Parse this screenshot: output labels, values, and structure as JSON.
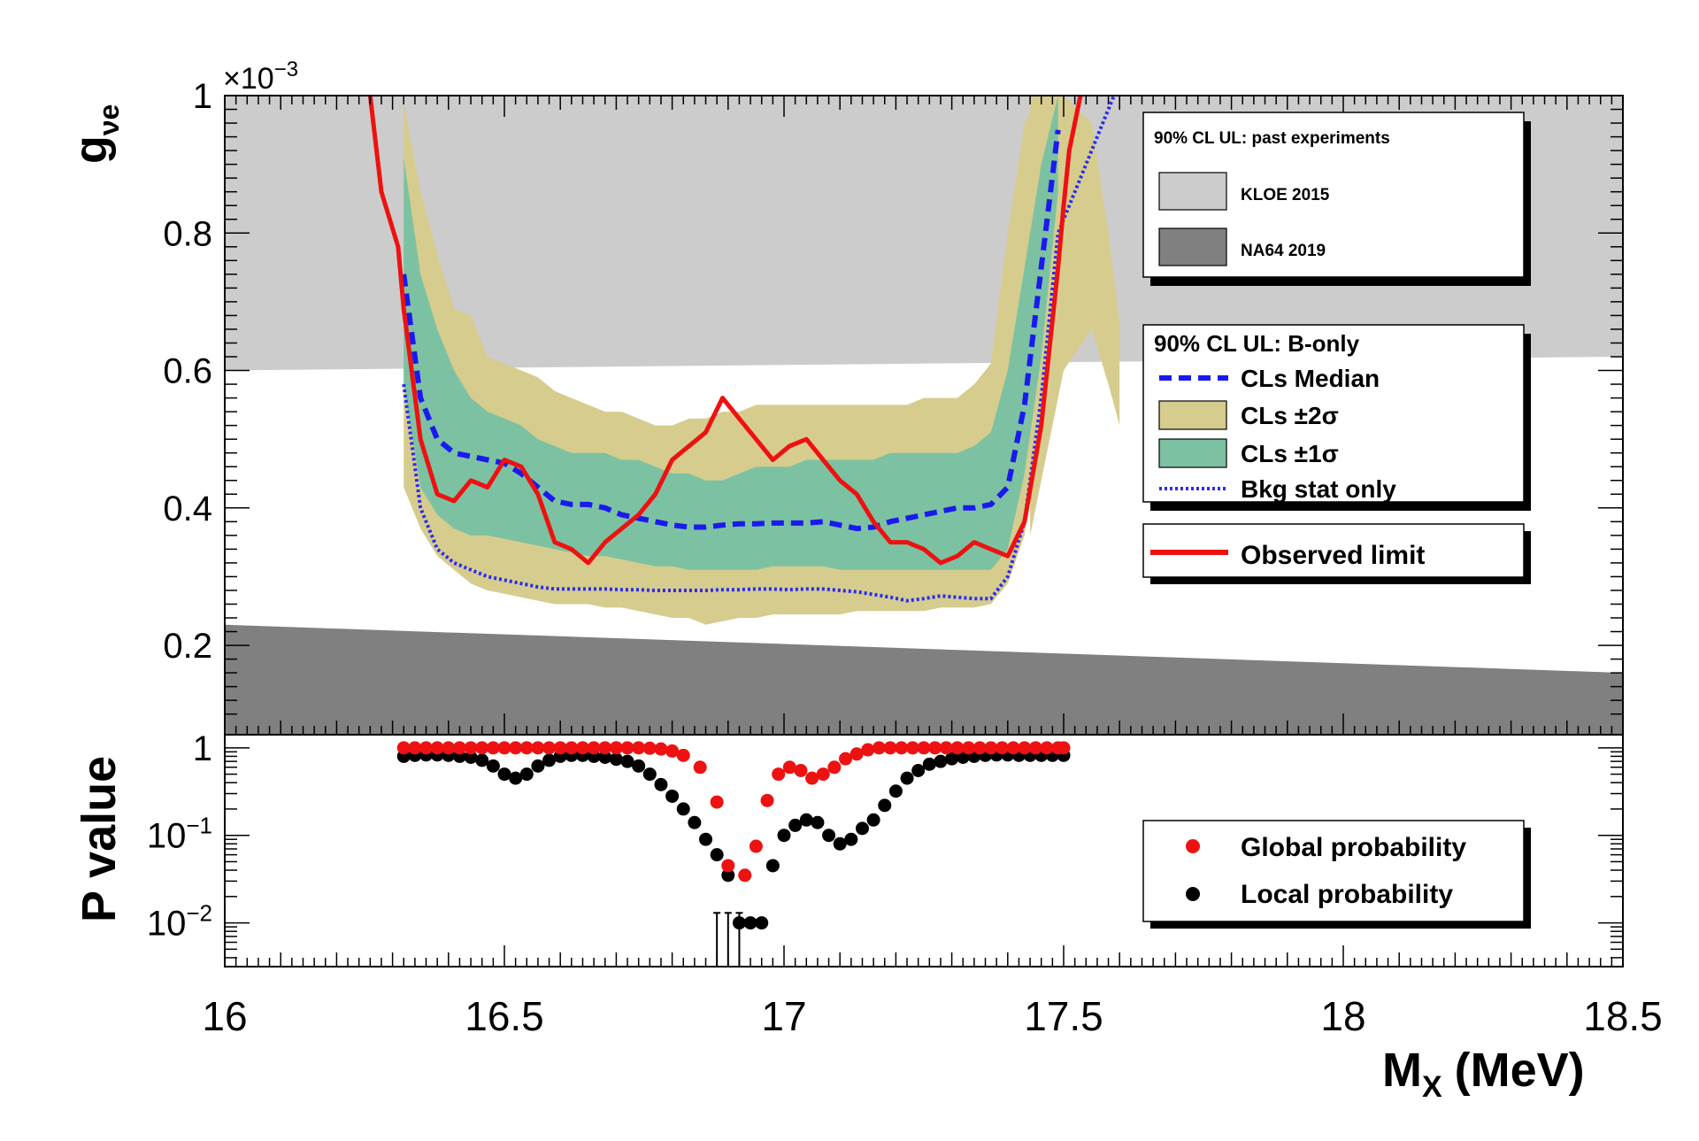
{
  "chart_data": [
    {
      "type": "line",
      "panel": "upper",
      "ylabel": "g",
      "ylabel_sub": "νe",
      "y_multiplier": "×10",
      "y_multiplier_exp": "−3",
      "xlim": [
        16,
        18.5
      ],
      "ylim": [
        0.07,
        1.0
      ],
      "yticks": [
        0.2,
        0.4,
        0.6,
        0.8,
        1
      ],
      "ytick_labels": [
        "0.2",
        "0.4",
        "0.6",
        "0.8",
        "1"
      ],
      "legend_past": {
        "title": "90% CL UL: past experiments",
        "entries": [
          "KLOE 2015",
          "NA64 2019"
        ]
      },
      "legend_bonly": {
        "title": "90% CL UL: B-only",
        "entries": [
          "CLs Median",
          "CLs  ±2σ",
          "CLs  ±1σ",
          "Bkg stat only"
        ]
      },
      "legend_observed": {
        "entries": [
          "Observed limit"
        ]
      },
      "colors": {
        "kloe": "#cccccc",
        "na64": "#808080",
        "band2": "#d6cc8e",
        "band1": "#7cc2a2",
        "median": "#1a1aee",
        "bkg": "#2b2bf0",
        "observed": "#ee1111"
      },
      "x": [
        16.32,
        16.35,
        16.38,
        16.41,
        16.44,
        16.47,
        16.5,
        16.53,
        16.56,
        16.59,
        16.62,
        16.65,
        16.68,
        16.71,
        16.74,
        16.77,
        16.8,
        16.83,
        16.86,
        16.89,
        16.92,
        16.95,
        16.98,
        17.01,
        17.04,
        17.07,
        17.1,
        17.13,
        17.16,
        17.19,
        17.22,
        17.25,
        17.28,
        17.31,
        17.34,
        17.37,
        17.4,
        17.43,
        17.46,
        17.49
      ],
      "series": [
        {
          "name": "CLs Median",
          "values": [
            0.74,
            0.56,
            0.5,
            0.48,
            0.475,
            0.47,
            0.465,
            0.45,
            0.43,
            0.41,
            0.405,
            0.405,
            0.4,
            0.39,
            0.385,
            0.38,
            0.375,
            0.372,
            0.372,
            0.375,
            0.377,
            0.377,
            0.378,
            0.378,
            0.378,
            0.38,
            0.375,
            0.37,
            0.372,
            0.38,
            0.385,
            0.39,
            0.395,
            0.4,
            0.4,
            0.405,
            0.43,
            0.55,
            0.75,
            0.95
          ]
        },
        {
          "name": "Bkg stat only",
          "values": [
            0.58,
            0.4,
            0.34,
            0.32,
            0.31,
            0.3,
            0.295,
            0.29,
            0.285,
            0.282,
            0.282,
            0.282,
            0.282,
            0.281,
            0.281,
            0.28,
            0.28,
            0.28,
            0.28,
            0.281,
            0.281,
            0.282,
            0.282,
            0.281,
            0.282,
            0.282,
            0.28,
            0.278,
            0.274,
            0.27,
            0.265,
            0.268,
            0.272,
            0.27,
            0.268,
            0.268,
            0.3,
            0.38,
            0.56,
            0.8
          ]
        },
        {
          "name": "Observed limit",
          "values": [
            0.69,
            0.5,
            0.42,
            0.41,
            0.44,
            0.43,
            0.47,
            0.46,
            0.42,
            0.35,
            0.34,
            0.32,
            0.35,
            0.37,
            0.39,
            0.42,
            0.47,
            0.49,
            0.51,
            0.56,
            0.53,
            0.5,
            0.47,
            0.49,
            0.5,
            0.47,
            0.44,
            0.42,
            0.38,
            0.35,
            0.35,
            0.34,
            0.32,
            0.33,
            0.35,
            0.34,
            0.33,
            0.38,
            0.52,
            0.75
          ]
        },
        {
          "name": "CLs  ±1σ upper",
          "values": [
            0.91,
            0.74,
            0.66,
            0.6,
            0.56,
            0.54,
            0.53,
            0.52,
            0.5,
            0.49,
            0.48,
            0.48,
            0.48,
            0.47,
            0.47,
            0.46,
            0.45,
            0.45,
            0.44,
            0.44,
            0.45,
            0.46,
            0.46,
            0.46,
            0.47,
            0.47,
            0.47,
            0.47,
            0.47,
            0.48,
            0.48,
            0.48,
            0.48,
            0.48,
            0.49,
            0.51,
            0.6,
            0.75,
            0.9,
            1.0
          ]
        },
        {
          "name": "CLs  ±1σ lower",
          "values": [
            0.58,
            0.43,
            0.39,
            0.37,
            0.36,
            0.36,
            0.355,
            0.35,
            0.345,
            0.34,
            0.335,
            0.33,
            0.33,
            0.325,
            0.32,
            0.315,
            0.315,
            0.31,
            0.31,
            0.31,
            0.31,
            0.31,
            0.315,
            0.315,
            0.315,
            0.315,
            0.31,
            0.31,
            0.31,
            0.31,
            0.31,
            0.31,
            0.31,
            0.31,
            0.31,
            0.31,
            0.34,
            0.45,
            0.62,
            0.86
          ]
        },
        {
          "name": "CLs  ±2σ upper",
          "values": [
            0.99,
            0.86,
            0.77,
            0.69,
            0.68,
            0.62,
            0.61,
            0.6,
            0.59,
            0.57,
            0.56,
            0.55,
            0.54,
            0.54,
            0.53,
            0.52,
            0.52,
            0.53,
            0.53,
            0.54,
            0.54,
            0.55,
            0.55,
            0.55,
            0.55,
            0.55,
            0.55,
            0.55,
            0.55,
            0.55,
            0.55,
            0.56,
            0.56,
            0.56,
            0.58,
            0.61,
            0.8,
            0.96,
            1.0,
            1.0
          ]
        },
        {
          "name": "CLs  ±2σ lower",
          "values": [
            0.43,
            0.37,
            0.33,
            0.31,
            0.29,
            0.28,
            0.275,
            0.27,
            0.265,
            0.26,
            0.26,
            0.26,
            0.255,
            0.255,
            0.25,
            0.245,
            0.24,
            0.24,
            0.23,
            0.235,
            0.24,
            0.24,
            0.245,
            0.245,
            0.245,
            0.245,
            0.245,
            0.25,
            0.25,
            0.25,
            0.25,
            0.25,
            0.255,
            0.255,
            0.255,
            0.26,
            0.29,
            0.36,
            0.52,
            0.76
          ]
        }
      ],
      "bands_extra": {
        "band2_tail_x": [
          17.44,
          17.5,
          17.55,
          17.58,
          17.6
        ],
        "band2_tail_upper": [
          1.0,
          1.0,
          0.96,
          0.8,
          0.67
        ],
        "band2_tail_lower": [
          0.36,
          0.6,
          0.66,
          0.58,
          0.52
        ],
        "bkg_tail_x": [
          17.49,
          17.53,
          17.57,
          17.59
        ],
        "bkg_tail_values": [
          0.8,
          0.88,
          0.96,
          1.0
        ],
        "obs_start_x": [
          16.26,
          16.28,
          16.31,
          16.32
        ],
        "obs_start_values": [
          1.0,
          0.86,
          0.78,
          0.69
        ],
        "obs_end_x": [
          17.49,
          17.5,
          17.51,
          17.53
        ],
        "obs_end_values": [
          0.75,
          0.84,
          0.92,
          1.0
        ]
      },
      "excluded_regions": [
        {
          "name": "KLOE 2015",
          "x": [
            16,
            18.5
          ],
          "lower": [
            0.6,
            0.62
          ],
          "upper": [
            1.0,
            1.0
          ]
        },
        {
          "name": "NA64 2019",
          "x": [
            16,
            18.5
          ],
          "lower": [
            0.07,
            0.07
          ],
          "upper": [
            0.23,
            0.16
          ]
        }
      ]
    },
    {
      "type": "scatter",
      "panel": "lower",
      "ylabel": "P value",
      "xlabel": "M",
      "xlabel_sub": "X",
      "xlabel_unit": "(MeV)",
      "xlim": [
        16,
        18.5
      ],
      "ylim_log10": [
        -2.5,
        0.15
      ],
      "ytick_labels": [
        {
          "value": 1,
          "text": "1"
        },
        {
          "value": 0.1,
          "base": "10",
          "exp": "−1"
        },
        {
          "value": 0.01,
          "base": "10",
          "exp": "−2"
        }
      ],
      "xticks": [
        16,
        16.5,
        17,
        17.5,
        18,
        18.5
      ],
      "xtick_labels": [
        "16",
        "16.5",
        "17",
        "17.5",
        "18",
        "18.5"
      ],
      "legend": {
        "entries": [
          "Global probability",
          "Local probability"
        ]
      },
      "series": [
        {
          "name": "Global probability",
          "color": "#ee1111",
          "x": [
            16.32,
            16.34,
            16.36,
            16.38,
            16.4,
            16.42,
            16.44,
            16.46,
            16.48,
            16.5,
            16.52,
            16.54,
            16.56,
            16.58,
            16.6,
            16.62,
            16.64,
            16.66,
            16.68,
            16.7,
            16.72,
            16.74,
            16.76,
            16.78,
            16.8,
            16.82,
            16.85,
            16.88,
            16.9,
            16.93,
            16.95,
            16.97,
            16.99,
            17.01,
            17.03,
            17.05,
            17.07,
            17.09,
            17.11,
            17.13,
            17.15,
            17.17,
            17.19,
            17.21,
            17.23,
            17.25,
            17.27,
            17.29,
            17.31,
            17.33,
            17.35,
            17.37,
            17.39,
            17.41,
            17.43,
            17.45,
            17.47,
            17.49,
            17.5
          ],
          "values": [
            1,
            1,
            1,
            1,
            1,
            1,
            1,
            1,
            1,
            1,
            1,
            1,
            1,
            1,
            1,
            1,
            1,
            1,
            1,
            1,
            1,
            1,
            0.99,
            0.97,
            0.92,
            0.82,
            0.6,
            0.24,
            0.045,
            0.035,
            0.075,
            0.25,
            0.5,
            0.6,
            0.55,
            0.45,
            0.5,
            0.6,
            0.75,
            0.85,
            0.95,
            1,
            1,
            1,
            1,
            1,
            1,
            1,
            1,
            1,
            1,
            1,
            1,
            1,
            1,
            1,
            1,
            1,
            1
          ]
        },
        {
          "name": "Local probability",
          "color": "#000000",
          "x": [
            16.32,
            16.34,
            16.36,
            16.38,
            16.4,
            16.42,
            16.44,
            16.46,
            16.48,
            16.5,
            16.52,
            16.54,
            16.56,
            16.58,
            16.6,
            16.62,
            16.64,
            16.66,
            16.68,
            16.7,
            16.72,
            16.74,
            16.76,
            16.78,
            16.8,
            16.82,
            16.84,
            16.86,
            16.88,
            16.9,
            16.92,
            16.94,
            16.96,
            16.98,
            17.0,
            17.02,
            17.04,
            17.06,
            17.08,
            17.1,
            17.12,
            17.14,
            17.16,
            17.18,
            17.2,
            17.22,
            17.24,
            17.26,
            17.28,
            17.3,
            17.32,
            17.34,
            17.36,
            17.38,
            17.4,
            17.42,
            17.44,
            17.46,
            17.48,
            17.5
          ],
          "values": [
            0.8,
            0.82,
            0.83,
            0.83,
            0.82,
            0.8,
            0.78,
            0.72,
            0.62,
            0.5,
            0.45,
            0.5,
            0.62,
            0.72,
            0.8,
            0.82,
            0.82,
            0.8,
            0.78,
            0.74,
            0.7,
            0.62,
            0.5,
            0.38,
            0.28,
            0.2,
            0.14,
            0.09,
            0.06,
            0.035,
            0.01,
            0.01,
            0.01,
            0.045,
            0.1,
            0.13,
            0.15,
            0.14,
            0.1,
            0.08,
            0.09,
            0.12,
            0.15,
            0.22,
            0.32,
            0.45,
            0.55,
            0.65,
            0.7,
            0.75,
            0.78,
            0.8,
            0.82,
            0.83,
            0.83,
            0.82,
            0.82,
            0.82,
            0.82,
            0.82
          ],
          "error_bars_to_bottom_at": [
            16.88,
            16.9,
            16.92
          ]
        }
      ]
    }
  ]
}
